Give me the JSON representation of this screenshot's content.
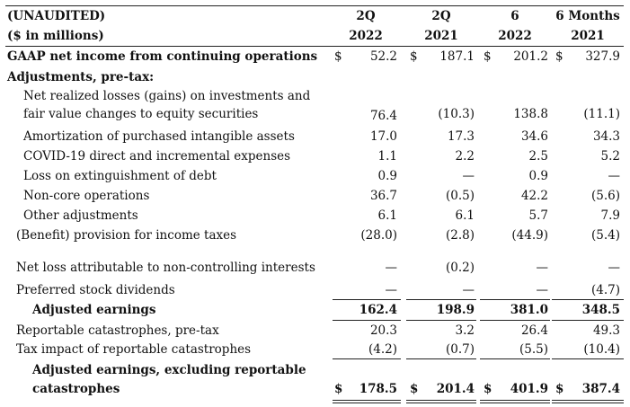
{
  "header": {
    "line1": "(UNAUDITED)",
    "line2": "($ in millions)",
    "columns": [
      {
        "top": "2Q",
        "bottom": "2022"
      },
      {
        "top": "2Q",
        "bottom": "2021"
      },
      {
        "top": "6",
        "bottom": "2022"
      },
      {
        "top": "6 Months",
        "bottom": "2021"
      }
    ]
  },
  "currency_symbol": "$",
  "rows": {
    "gaap": {
      "label": "GAAP net income from continuing operations",
      "values": [
        "52.2",
        "187.1",
        "201.2",
        "327.9"
      ]
    },
    "adjustments": {
      "label": "Adjustments, pre-tax:"
    },
    "realized": {
      "label_line1": "Net realized losses (gains) on investments and",
      "label_line2": "fair value changes to equity securities",
      "values": [
        "76.4",
        "(10.3)",
        "138.8",
        "(11.1)"
      ]
    },
    "amort": {
      "label": "Amortization of purchased intangible assets",
      "values": [
        "17.0",
        "17.3",
        "34.6",
        "34.3"
      ]
    },
    "covid": {
      "label": "COVID-19 direct and incremental expenses",
      "values": [
        "1.1",
        "2.2",
        "2.5",
        "5.2"
      ]
    },
    "loss_debt": {
      "label": "Loss on extinguishment of debt",
      "values": [
        "0.9",
        "—",
        "0.9",
        "—"
      ]
    },
    "noncore": {
      "label": "Non-core operations",
      "values": [
        "36.7",
        "(0.5)",
        "42.2",
        "(5.6)"
      ]
    },
    "other": {
      "label": "Other adjustments",
      "values": [
        "6.1",
        "6.1",
        "5.7",
        "7.9"
      ]
    },
    "benefit": {
      "label": "(Benefit) provision for income taxes",
      "values": [
        "(28.0)",
        "(2.8)",
        "(44.9)",
        "(5.4)"
      ]
    },
    "nci": {
      "label": "Net loss attributable to non-controlling interests",
      "values": [
        "—",
        "(0.2)",
        "—",
        "—"
      ]
    },
    "preferred": {
      "label": "Preferred stock dividends",
      "values": [
        "—",
        "—",
        "—",
        "(4.7)"
      ]
    },
    "adjusted": {
      "label": "Adjusted earnings",
      "values": [
        "162.4",
        "198.9",
        "381.0",
        "348.5"
      ]
    },
    "reportable": {
      "label": "Reportable catastrophes, pre-tax",
      "values": [
        "20.3",
        "3.2",
        "26.4",
        "49.3"
      ]
    },
    "tax_impact": {
      "label": "Tax impact of reportable catastrophes",
      "values": [
        "(4.2)",
        "(0.7)",
        "(5.5)",
        "(10.4)"
      ]
    },
    "adj_excl": {
      "label_line1": "Adjusted earnings, excluding reportable",
      "label_line2": "catastrophes",
      "values": [
        "178.5",
        "201.4",
        "401.9",
        "387.4"
      ]
    }
  }
}
